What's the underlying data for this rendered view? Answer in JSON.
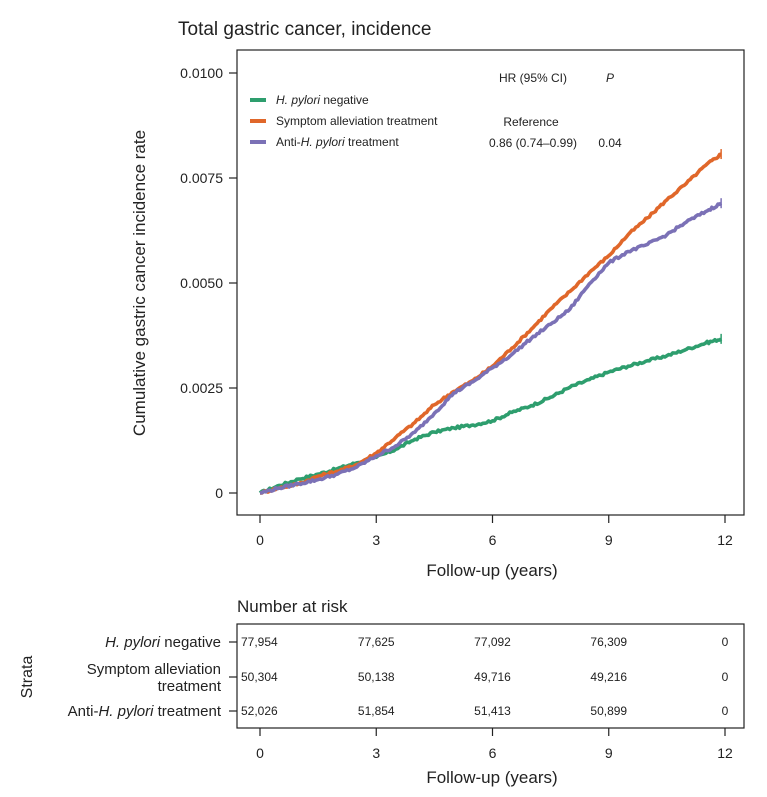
{
  "chart_data": {
    "type": "line",
    "title": "Total gastric cancer, incidence",
    "ylabel": "Cumulative gastric cancer incidence rate",
    "xlabel": "Follow-up (years)",
    "xlim": [
      0,
      12
    ],
    "ylim": [
      0,
      0.01
    ],
    "x_ticks": [
      0,
      3,
      6,
      9,
      12
    ],
    "y_ticks": [
      {
        "value": 0,
        "label": "0"
      },
      {
        "value": 0.0025,
        "label": "0.0025"
      },
      {
        "value": 0.005,
        "label": "0.0050"
      },
      {
        "value": 0.0075,
        "label": "0.0075"
      },
      {
        "value": 0.01,
        "label": "0.0100"
      }
    ],
    "grid": false,
    "legend_position": "top-left",
    "legend": [
      {
        "prefix": "",
        "italic": "H. pylori",
        "suffix": " negative",
        "color": "#2e9e6e"
      },
      {
        "prefix": "Symptom alleviation treatment",
        "italic": "",
        "suffix": "",
        "color": "#e0672a"
      },
      {
        "prefix": "Anti-",
        "italic": "H. pylori",
        "suffix": " treatment",
        "color": "#7b71b6"
      }
    ],
    "hr_header": "HR (95% CI)",
    "p_header": "P",
    "hr_rows": [
      {
        "hr": "Reference",
        "p": ""
      },
      {
        "hr": "0.86 (0.74–0.99)",
        "p": "0.04"
      }
    ],
    "series": [
      {
        "name": "H. pylori negative",
        "color": "#2e9e6e",
        "x": [
          0,
          0.5,
          1,
          1.5,
          2,
          2.5,
          3,
          3.5,
          4,
          4.5,
          5,
          5.5,
          6,
          6.5,
          7,
          7.5,
          8,
          8.5,
          9,
          9.5,
          10,
          10.5,
          11,
          11.5,
          11.9
        ],
        "y": [
          0,
          0.00018,
          0.00033,
          0.00045,
          0.00058,
          0.00072,
          0.00085,
          0.00104,
          0.00128,
          0.00145,
          0.00155,
          0.00162,
          0.00172,
          0.00192,
          0.00208,
          0.00228,
          0.00252,
          0.0027,
          0.00288,
          0.00302,
          0.00315,
          0.00327,
          0.00342,
          0.00357,
          0.00367
        ]
      },
      {
        "name": "Symptom alleviation treatment",
        "color": "#e0672a",
        "x": [
          0,
          0.5,
          1,
          1.5,
          2,
          2.5,
          3,
          3.5,
          4,
          4.5,
          5,
          5.5,
          6,
          6.5,
          7,
          7.5,
          8,
          8.5,
          9,
          9.5,
          10,
          10.5,
          11,
          11.5,
          11.9
        ],
        "y": [
          0,
          0.00012,
          0.00022,
          0.0004,
          0.00052,
          0.00068,
          0.00095,
          0.00132,
          0.00168,
          0.0021,
          0.00242,
          0.00268,
          0.00302,
          0.00345,
          0.0039,
          0.00438,
          0.0048,
          0.00525,
          0.00565,
          0.00615,
          0.00655,
          0.00698,
          0.00737,
          0.0078,
          0.00807
        ]
      },
      {
        "name": "Anti-H. pylori treatment",
        "color": "#7b71b6",
        "x": [
          0,
          0.5,
          1,
          1.5,
          2,
          2.5,
          3,
          3.5,
          4,
          4.5,
          5,
          5.5,
          6,
          6.5,
          7,
          7.5,
          8,
          8.5,
          9,
          9.5,
          10,
          10.5,
          11,
          11.5,
          11.9
        ],
        "y": [
          0,
          0.00012,
          0.00022,
          0.00032,
          0.00045,
          0.00062,
          0.00088,
          0.00112,
          0.00145,
          0.0019,
          0.00238,
          0.00265,
          0.00298,
          0.0033,
          0.00368,
          0.00402,
          0.00438,
          0.00498,
          0.00548,
          0.00575,
          0.00592,
          0.00615,
          0.00645,
          0.0067,
          0.0069
        ]
      }
    ]
  },
  "risk_table": {
    "title": "Number at risk",
    "strata_label": "Strata",
    "xlabel": "Follow-up (years)",
    "x_ticks": [
      0,
      3,
      6,
      9,
      12
    ],
    "rows": [
      {
        "label_lines": [
          {
            "prefix": "",
            "italic": "H. pylori",
            "suffix": " negative"
          }
        ],
        "color": "#2e9e6e",
        "values": [
          "77,954",
          "77,625",
          "77,092",
          "76,309",
          "0"
        ]
      },
      {
        "label_lines": [
          {
            "prefix": "Symptom alleviation",
            "italic": "",
            "suffix": ""
          },
          {
            "prefix": "treatment",
            "italic": "",
            "suffix": ""
          }
        ],
        "color": "#e0672a",
        "values": [
          "50,304",
          "50,138",
          "49,716",
          "49,216",
          "0"
        ]
      },
      {
        "label_lines": [
          {
            "prefix": "Anti-",
            "italic": "H. pylori",
            "suffix": " treatment"
          }
        ],
        "color": "#7b71b6",
        "values": [
          "52,026",
          "51,854",
          "51,413",
          "50,899",
          "0"
        ]
      }
    ]
  }
}
